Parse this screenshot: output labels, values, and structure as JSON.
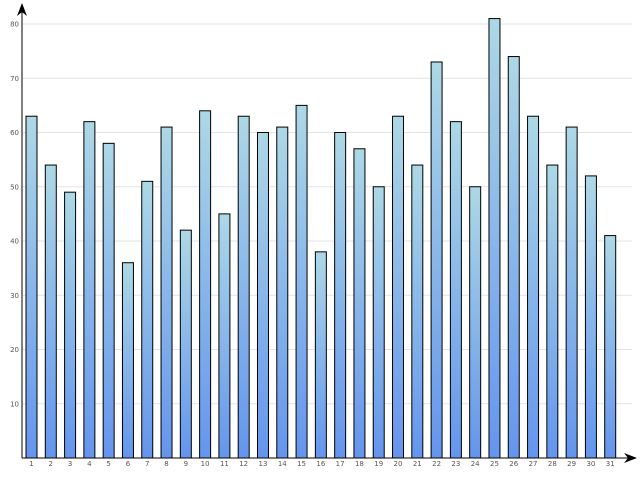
{
  "chart_data": {
    "type": "bar",
    "title": "",
    "xlabel": "",
    "ylabel": "",
    "categories": [
      "1",
      "2",
      "3",
      "4",
      "5",
      "6",
      "7",
      "8",
      "9",
      "10",
      "11",
      "12",
      "13",
      "14",
      "15",
      "16",
      "17",
      "18",
      "19",
      "20",
      "21",
      "22",
      "23",
      "24",
      "25",
      "26",
      "27",
      "28",
      "29",
      "30",
      "31"
    ],
    "values": [
      63,
      54,
      49,
      62,
      58,
      36,
      51,
      61,
      42,
      64,
      45,
      63,
      60,
      61,
      65,
      38,
      60,
      57,
      50,
      63,
      54,
      73,
      62,
      50,
      81,
      74,
      63,
      54,
      61,
      52,
      41
    ],
    "ylim": [
      0,
      80
    ],
    "yticks": [
      10,
      20,
      30,
      40,
      50,
      60,
      70,
      80
    ],
    "grid": true,
    "colors": {
      "bar_top": "#add8e6",
      "bar_bottom": "#6495ed",
      "bar_outline": "#000000",
      "grid": "#e3e3e3",
      "axis": "#000000",
      "tick_text": "#555555"
    }
  }
}
